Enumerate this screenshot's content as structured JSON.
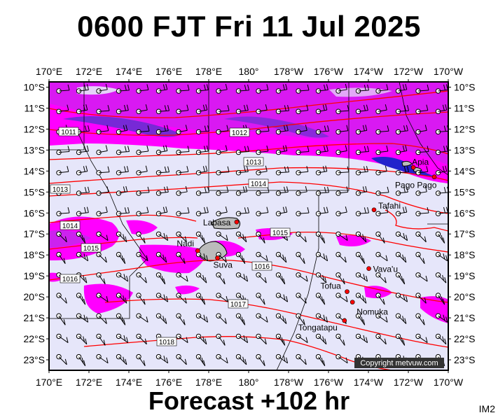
{
  "title": "0600 FJT Fri 11 Jul 2025",
  "footer": "Forecast +102 hr",
  "corner_label": "IM2",
  "copyright": "Copyright metvuw.com",
  "axes": {
    "top_ticks": [
      "170°E",
      "172°E",
      "174°E",
      "176°E",
      "178°E",
      "180°",
      "178°W",
      "176°W",
      "174°W",
      "172°W",
      "170°W"
    ],
    "bottom_ticks": [
      "170°E",
      "172°E",
      "174°E",
      "176°E",
      "178°E",
      "180°",
      "178°W",
      "176°W",
      "174°W",
      "172°W",
      "170°W"
    ],
    "left_ticks": [
      "10°S",
      "11°S",
      "12°S",
      "13°S",
      "14°S",
      "15°S",
      "16°S",
      "17°S",
      "18°S",
      "19°S",
      "20°S",
      "21°S",
      "22°S",
      "23°S"
    ],
    "right_ticks": [
      "10°S",
      "11°S",
      "12°S",
      "13°S",
      "14°S",
      "15°S",
      "16°S",
      "17°S",
      "18°S",
      "19°S",
      "20°S",
      "21°S",
      "22°S",
      "23°S"
    ]
  },
  "places": [
    {
      "name": "Apia",
      "lon": -171.75,
      "lat": -13.83
    },
    {
      "name": "Pago Pago",
      "lon": -170.7,
      "lat": -14.28
    },
    {
      "name": "Tafahi",
      "lon": -173.72,
      "lat": -15.85
    },
    {
      "name": "Labasa",
      "lon": 179.4,
      "lat": -16.43
    },
    {
      "name": "Nadi",
      "lon": 177.45,
      "lat": -17.8
    },
    {
      "name": "Suva",
      "lon": 178.44,
      "lat": -18.14
    },
    {
      "name": "Vava'u",
      "lon": -173.98,
      "lat": -18.65
    },
    {
      "name": "Tofua",
      "lon": -175.07,
      "lat": -19.75
    },
    {
      "name": "Nomuka",
      "lon": -174.8,
      "lat": -20.25
    },
    {
      "name": "Tongatapu",
      "lon": -175.2,
      "lat": -21.13
    }
  ],
  "isobar_labels": [
    "1011",
    "1012",
    "1013",
    "1013",
    "1014",
    "1014",
    "1015",
    "1015",
    "1016",
    "1016",
    "1017",
    "1018"
  ],
  "colors": {
    "background_rain": "#e6e6fa",
    "rain_light": "#ff00ff",
    "rain_medium": "#cc22ee",
    "rain_heavy": "#3333dd",
    "isobar": "#ff0000",
    "boundary": "#000000"
  }
}
